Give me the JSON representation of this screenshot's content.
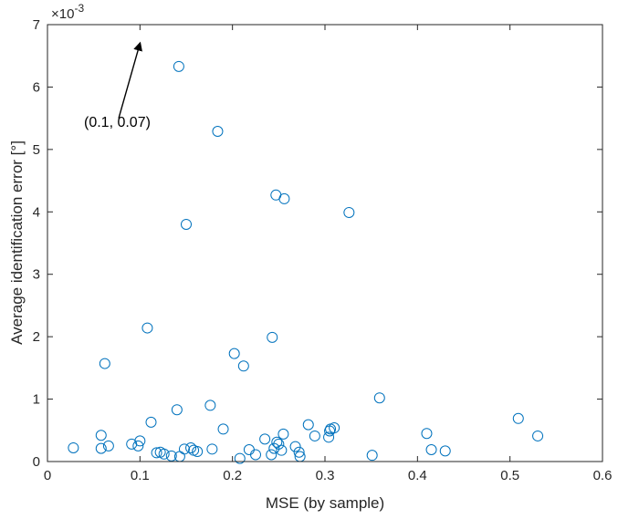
{
  "chart_data": {
    "type": "scatter",
    "xlabel": "MSE (by sample)",
    "ylabel": "Average identification error [°]",
    "xlim": [
      0,
      0.6
    ],
    "ylim": [
      0,
      0.007
    ],
    "x_ticks": [
      "0",
      "0.1",
      "0.2",
      "0.3",
      "0.4",
      "0.5",
      "0.6"
    ],
    "y_ticks": [
      "0",
      "1",
      "2",
      "3",
      "4",
      "5",
      "6",
      "7"
    ],
    "y_exponent_base": "×10",
    "y_exponent_power": "-3",
    "grid": false,
    "marker": "open-circle",
    "marker_color": "#0072bd",
    "annotation": {
      "text": "(0.1, 0.07)",
      "arrow_tip": {
        "x": 0.1,
        "y": 0.0067
      },
      "arrow_tail": {
        "x": 0.077,
        "y": 0.0055
      }
    },
    "points": [
      {
        "x": 0.028,
        "y": 0.00022
      },
      {
        "x": 0.058,
        "y": 0.00042
      },
      {
        "x": 0.058,
        "y": 0.00021
      },
      {
        "x": 0.062,
        "y": 0.00157
      },
      {
        "x": 0.066,
        "y": 0.00025
      },
      {
        "x": 0.091,
        "y": 0.00028
      },
      {
        "x": 0.098,
        "y": 0.00025
      },
      {
        "x": 0.1,
        "y": 0.00033
      },
      {
        "x": 0.108,
        "y": 0.00214
      },
      {
        "x": 0.112,
        "y": 0.00063
      },
      {
        "x": 0.118,
        "y": 0.00014
      },
      {
        "x": 0.122,
        "y": 0.00015
      },
      {
        "x": 0.126,
        "y": 0.00012
      },
      {
        "x": 0.134,
        "y": 9e-05
      },
      {
        "x": 0.14,
        "y": 0.00083
      },
      {
        "x": 0.142,
        "y": 0.00633
      },
      {
        "x": 0.143,
        "y": 8e-05
      },
      {
        "x": 0.148,
        "y": 0.0002
      },
      {
        "x": 0.15,
        "y": 0.0038
      },
      {
        "x": 0.155,
        "y": 0.00022
      },
      {
        "x": 0.158,
        "y": 0.00018
      },
      {
        "x": 0.162,
        "y": 0.00016
      },
      {
        "x": 0.176,
        "y": 0.0009
      },
      {
        "x": 0.178,
        "y": 0.0002
      },
      {
        "x": 0.184,
        "y": 0.00529
      },
      {
        "x": 0.19,
        "y": 0.00052
      },
      {
        "x": 0.202,
        "y": 0.00173
      },
      {
        "x": 0.208,
        "y": 5e-05
      },
      {
        "x": 0.212,
        "y": 0.00153
      },
      {
        "x": 0.218,
        "y": 0.00019
      },
      {
        "x": 0.225,
        "y": 0.00011
      },
      {
        "x": 0.235,
        "y": 0.00036
      },
      {
        "x": 0.242,
        "y": 0.00011
      },
      {
        "x": 0.243,
        "y": 0.00199
      },
      {
        "x": 0.245,
        "y": 0.00021
      },
      {
        "x": 0.247,
        "y": 0.00427
      },
      {
        "x": 0.248,
        "y": 0.00031
      },
      {
        "x": 0.25,
        "y": 0.00028
      },
      {
        "x": 0.253,
        "y": 0.00018
      },
      {
        "x": 0.256,
        "y": 0.00421
      },
      {
        "x": 0.255,
        "y": 0.00044
      },
      {
        "x": 0.268,
        "y": 0.00024
      },
      {
        "x": 0.272,
        "y": 0.00015
      },
      {
        "x": 0.273,
        "y": 8e-05
      },
      {
        "x": 0.282,
        "y": 0.00059
      },
      {
        "x": 0.289,
        "y": 0.00041
      },
      {
        "x": 0.304,
        "y": 0.00039
      },
      {
        "x": 0.305,
        "y": 0.00049
      },
      {
        "x": 0.306,
        "y": 0.00052
      },
      {
        "x": 0.31,
        "y": 0.00054
      },
      {
        "x": 0.326,
        "y": 0.00399
      },
      {
        "x": 0.351,
        "y": 0.0001
      },
      {
        "x": 0.359,
        "y": 0.00102
      },
      {
        "x": 0.41,
        "y": 0.00045
      },
      {
        "x": 0.415,
        "y": 0.00019
      },
      {
        "x": 0.43,
        "y": 0.00017
      },
      {
        "x": 0.509,
        "y": 0.00069
      },
      {
        "x": 0.53,
        "y": 0.00041
      }
    ]
  }
}
